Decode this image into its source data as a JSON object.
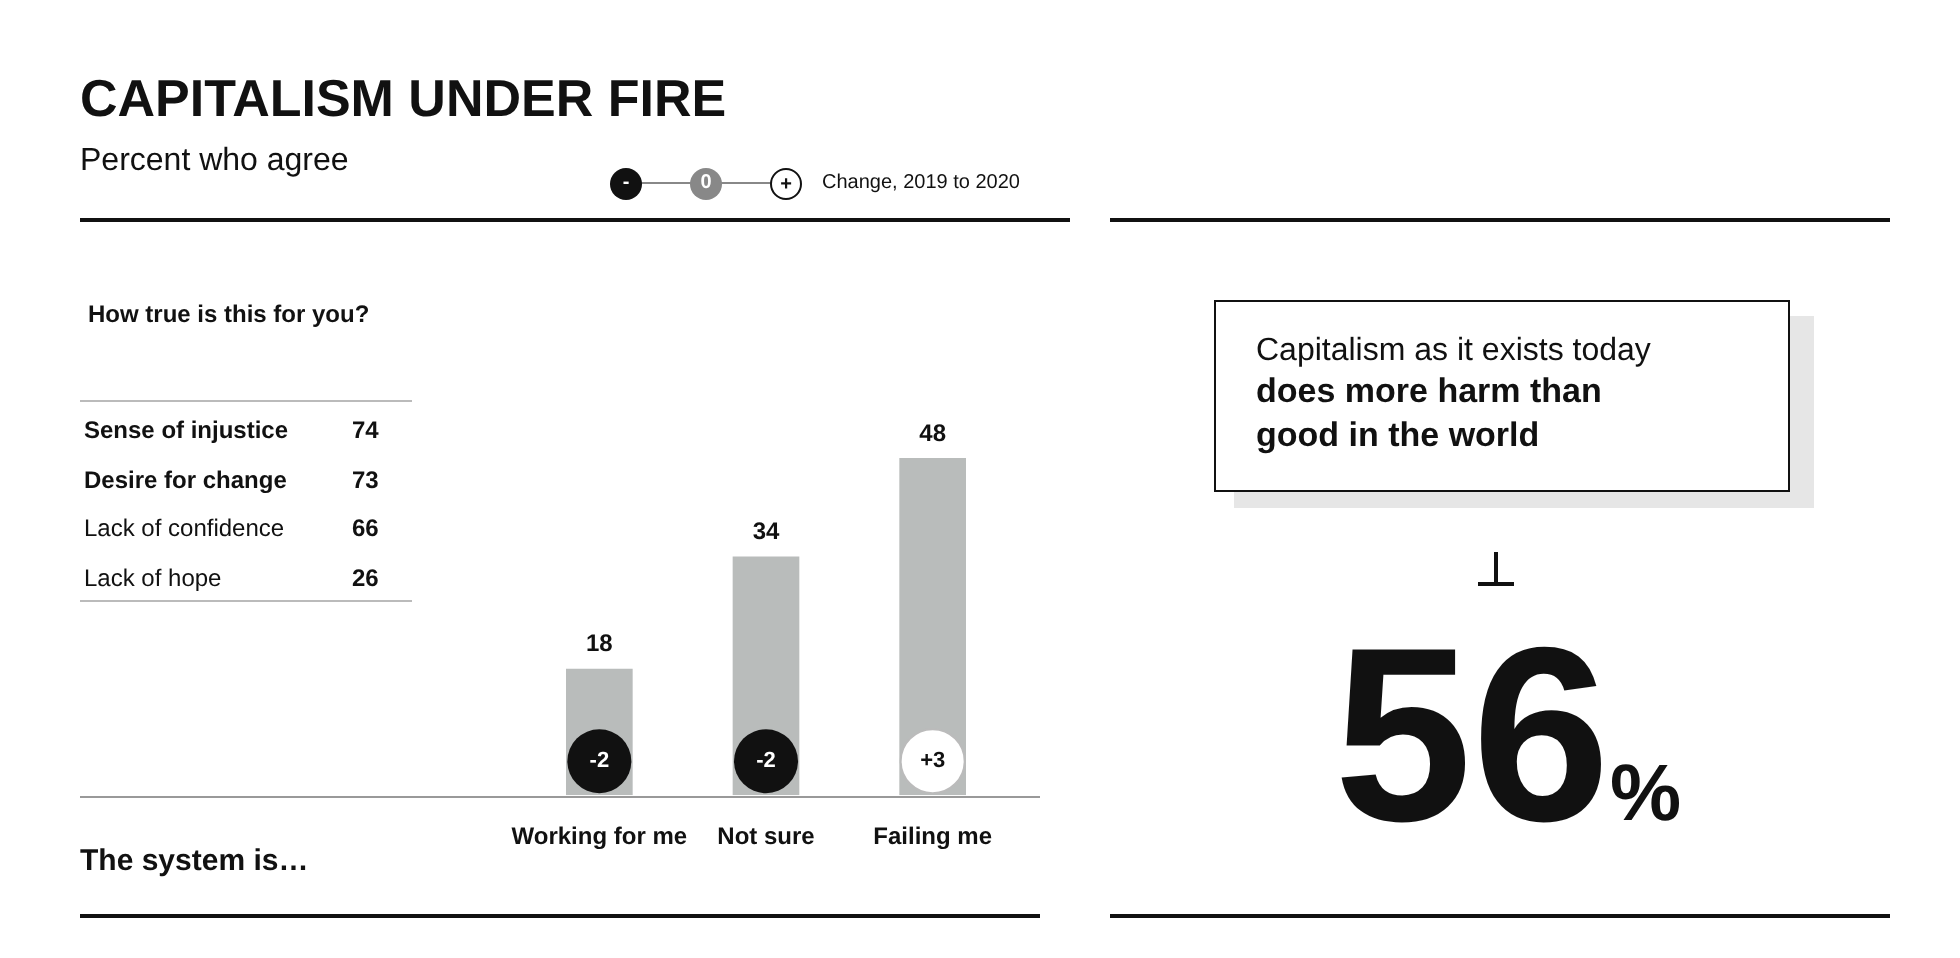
{
  "chart_data": [
    {
      "type": "bar",
      "title": "CAPITALISM UNDER FIRE",
      "subtitle": "Percent who agree",
      "categories": [
        "Working for me",
        "Not sure",
        "Failing me"
      ],
      "values": [
        18,
        34,
        48
      ],
      "color": "#b9bcbb",
      "data_labels": true,
      "grid": false,
      "legend": false,
      "annotations": [
        "-",
        "0",
        "+",
        "Change, 2019 to 2020",
        "The system is…",
        {
          "text": "-2",
          "x": "Working for me"
        },
        {
          "text": "-2",
          "x": "Not sure"
        },
        {
          "text": "+3",
          "x": "Failing me"
        }
      ]
    },
    {
      "type": "other",
      "title": "How true is this for you?",
      "categories": [
        "Sense of injustice",
        "Desire for change",
        "Lack of confidence",
        "Lack of hope"
      ],
      "values": [
        74,
        73,
        66,
        26
      ],
      "data_labels": true
    },
    {
      "type": "other",
      "title": "Capitalism as it exists today",
      "subtitle": "does more harm than good in the world",
      "values": [
        56
      ],
      "value_labels": [
        "56%"
      ]
    }
  ]
}
